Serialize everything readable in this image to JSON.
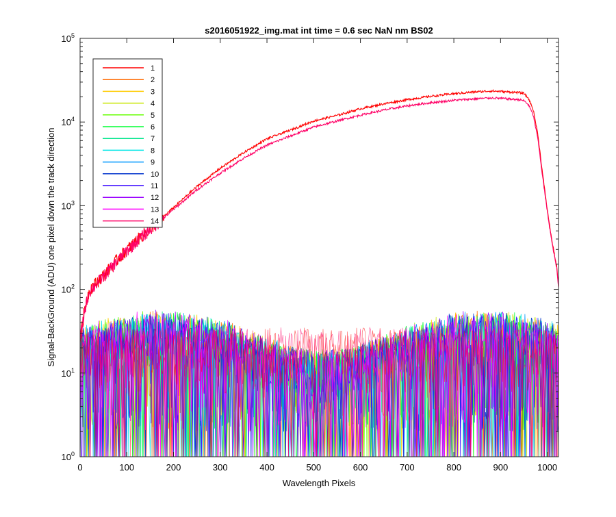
{
  "chart_data": {
    "type": "line",
    "title": "s2016051922_img.mat int time = 0.6 sec  NaN nm BS02",
    "xlabel": "Wavelength Pixels",
    "ylabel": "Signal-BackGround (ADU) one pixel down the track direction",
    "xlim": [
      0,
      1024
    ],
    "ylim": [
      1,
      100000
    ],
    "yscale": "log",
    "grid": false,
    "legend_position": "top-left",
    "x_ticks": [
      "0",
      "100",
      "200",
      "300",
      "400",
      "500",
      "600",
      "700",
      "800",
      "900",
      "1000"
    ],
    "x_tick_values": [
      0,
      100,
      200,
      300,
      400,
      500,
      600,
      700,
      800,
      900,
      1000
    ],
    "y_ticks": [
      {
        "base": "10",
        "exp": "0",
        "value": 1
      },
      {
        "base": "10",
        "exp": "1",
        "value": 10
      },
      {
        "base": "10",
        "exp": "2",
        "value": 100
      },
      {
        "base": "10",
        "exp": "3",
        "value": 1000
      },
      {
        "base": "10",
        "exp": "4",
        "value": 10000
      },
      {
        "base": "10",
        "exp": "5",
        "value": 100000
      }
    ],
    "series": [
      {
        "name": "1",
        "color": "#ff0000",
        "kind": "signal",
        "x": [
          0,
          10,
          20,
          40,
          60,
          80,
          100,
          130,
          160,
          200,
          250,
          300,
          350,
          400,
          450,
          500,
          550,
          600,
          650,
          700,
          750,
          800,
          850,
          880,
          900,
          920,
          940,
          950,
          960,
          970,
          980,
          990,
          1000,
          1010,
          1020,
          1024
        ],
        "values": [
          25,
          60,
          100,
          130,
          170,
          230,
          300,
          430,
          600,
          950,
          1700,
          2800,
          4300,
          6300,
          8000,
          10300,
          12000,
          14400,
          16500,
          18500,
          20300,
          21800,
          23000,
          23500,
          23200,
          22800,
          22500,
          22000,
          19000,
          14000,
          7000,
          2400,
          900,
          380,
          190,
          110
        ]
      },
      {
        "name": "2",
        "color": "#ff6a00",
        "kind": "noise"
      },
      {
        "name": "3",
        "color": "#ffcc00",
        "kind": "noise"
      },
      {
        "name": "4",
        "color": "#c8e600",
        "kind": "noise"
      },
      {
        "name": "5",
        "color": "#66ff00",
        "kind": "noise"
      },
      {
        "name": "6",
        "color": "#00ff33",
        "kind": "noise"
      },
      {
        "name": "7",
        "color": "#00e68c",
        "kind": "noise"
      },
      {
        "name": "8",
        "color": "#00e6e6",
        "kind": "noise"
      },
      {
        "name": "9",
        "color": "#0099ff",
        "kind": "noise"
      },
      {
        "name": "10",
        "color": "#0033cc",
        "kind": "noise"
      },
      {
        "name": "11",
        "color": "#3300ff",
        "kind": "noise"
      },
      {
        "name": "12",
        "color": "#9900ff",
        "kind": "noise"
      },
      {
        "name": "13",
        "color": "#ff00ff",
        "kind": "noise"
      },
      {
        "name": "14",
        "color": "#ff0066",
        "kind": "signal",
        "x": [
          0,
          10,
          20,
          40,
          60,
          80,
          100,
          130,
          160,
          200,
          250,
          300,
          350,
          400,
          450,
          500,
          550,
          600,
          650,
          700,
          750,
          800,
          850,
          880,
          900,
          920,
          940,
          950,
          960,
          970,
          980,
          990,
          1000,
          1010,
          1020,
          1024
        ],
        "values": [
          25,
          58,
          95,
          125,
          165,
          220,
          290,
          420,
          580,
          900,
          1550,
          2450,
          3700,
          5300,
          6800,
          8700,
          10300,
          12100,
          13900,
          15600,
          17000,
          18200,
          19000,
          19400,
          19200,
          18800,
          18500,
          18000,
          16000,
          12000,
          6200,
          2200,
          850,
          360,
          180,
          105
        ]
      }
    ]
  }
}
